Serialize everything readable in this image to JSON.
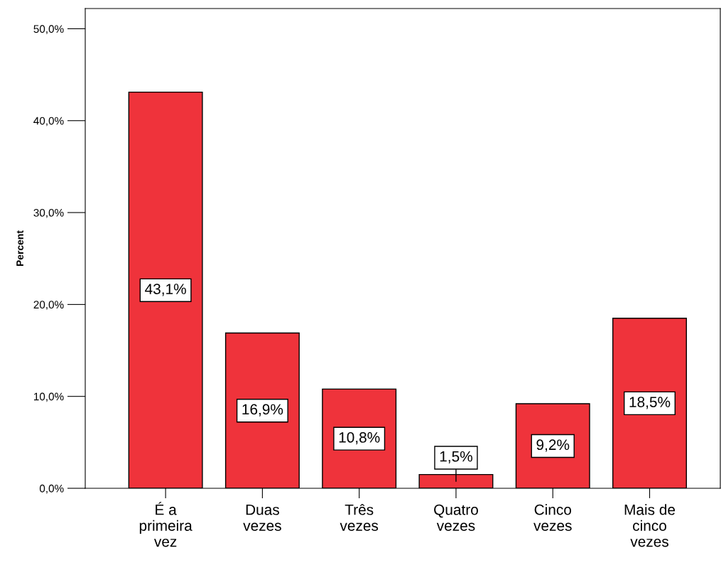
{
  "chart_data": {
    "type": "bar",
    "ylabel": "Percent",
    "categories": [
      "É a\nprimeira\nvez",
      "Duas\nvezes",
      "Três\nvezes",
      "Quatro\nvezes",
      "Cinco\nvezes",
      "Mais de\ncinco\nvezes"
    ],
    "values": [
      43.1,
      16.9,
      10.8,
      1.5,
      9.2,
      18.5
    ],
    "value_labels": [
      "43,1%",
      "16,9%",
      "10,8%",
      "1,5%",
      "9,2%",
      "18,5%"
    ],
    "color": "#ef333b",
    "ylim": [
      0,
      52.2
    ],
    "yticks": [
      {
        "value": 0,
        "label": "0,0%"
      },
      {
        "value": 10,
        "label": "10,0%"
      },
      {
        "value": 20,
        "label": "20,0%"
      },
      {
        "value": 30,
        "label": "30,0%"
      },
      {
        "value": 40,
        "label": "40,0%"
      },
      {
        "value": 50,
        "label": "50,0%"
      }
    ],
    "grid": false,
    "legend": false
  }
}
